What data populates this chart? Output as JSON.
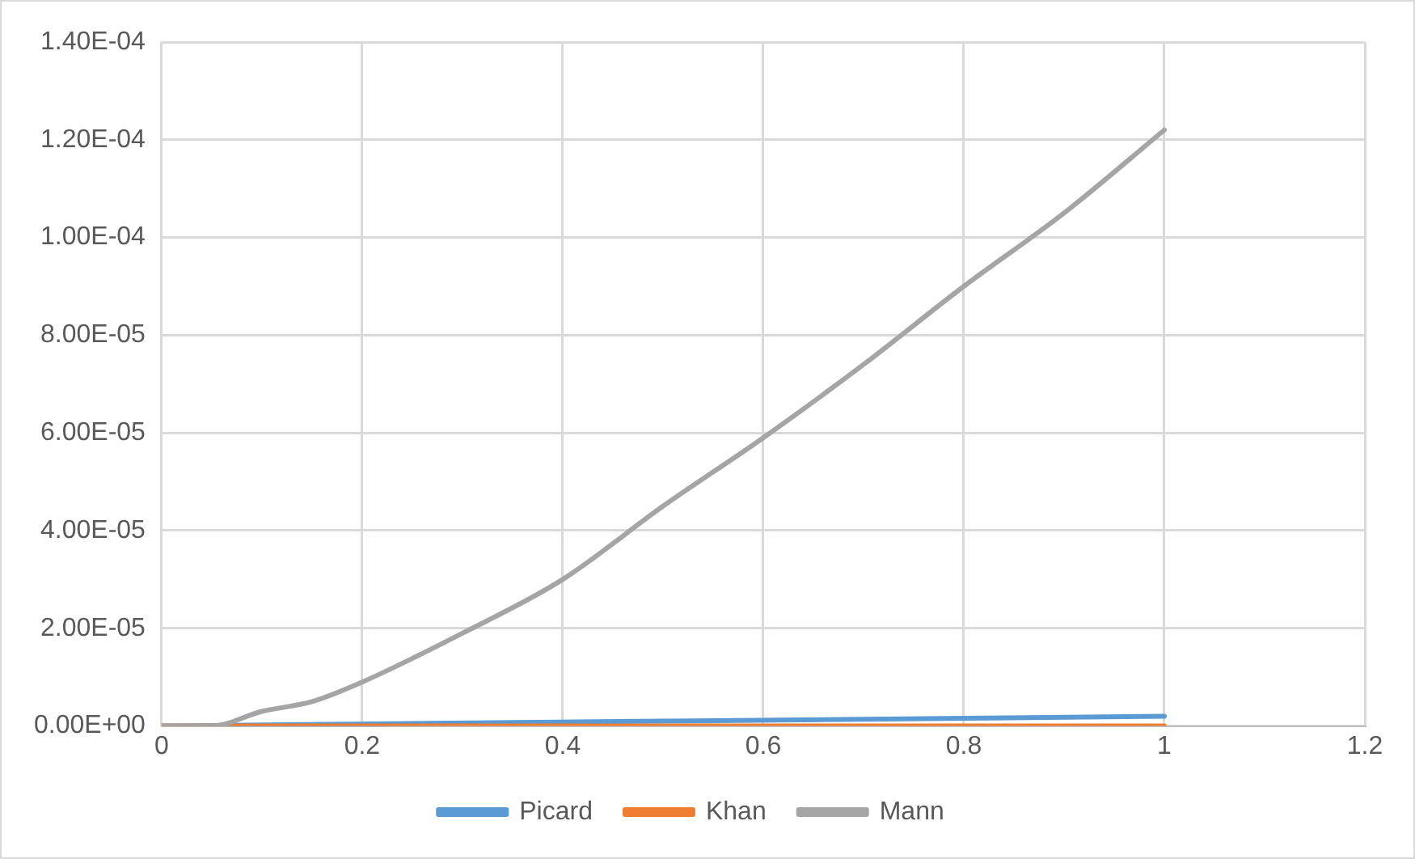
{
  "chart_data": {
    "type": "line",
    "x": [
      0,
      0.05,
      0.1,
      0.15,
      0.2,
      0.3,
      0.4,
      0.5,
      0.6,
      0.7,
      0.8,
      0.9,
      1
    ],
    "series": [
      {
        "name": "Picard",
        "color": "#5b9bd5",
        "x": [
          0,
          0.5,
          1
        ],
        "values": [
          0,
          1e-06,
          2e-06
        ]
      },
      {
        "name": "Khan",
        "color": "#ed7d31",
        "x": [
          0,
          1
        ],
        "values": [
          0,
          0
        ]
      },
      {
        "name": "Mann",
        "color": "#a5a5a5",
        "values": [
          0,
          0,
          3e-06,
          5e-06,
          9e-06,
          1.9e-05,
          3e-05,
          4.5e-05,
          5.9e-05,
          7.4e-05,
          9e-05,
          0.000105,
          0.000122
        ]
      }
    ],
    "xlim": [
      0,
      1.2
    ],
    "xticks": [
      0,
      0.2,
      0.4,
      0.6,
      0.8,
      1,
      1.2
    ],
    "ylim": [
      0,
      0.00014
    ],
    "yticks": [
      {
        "value": 0,
        "label": "0.00E+00"
      },
      {
        "value": 2e-05,
        "label": "2.00E-05"
      },
      {
        "value": 4e-05,
        "label": "4.00E-05"
      },
      {
        "value": 6e-05,
        "label": "6.00E-05"
      },
      {
        "value": 8e-05,
        "label": "8.00E-05"
      },
      {
        "value": 0.0001,
        "label": "1.00E-04"
      },
      {
        "value": 0.00012,
        "label": "1.20E-04"
      },
      {
        "value": 0.00014,
        "label": "1.40E-04"
      }
    ],
    "grid": true,
    "legend": "bottom",
    "marker": "none",
    "line_style": "solid"
  }
}
